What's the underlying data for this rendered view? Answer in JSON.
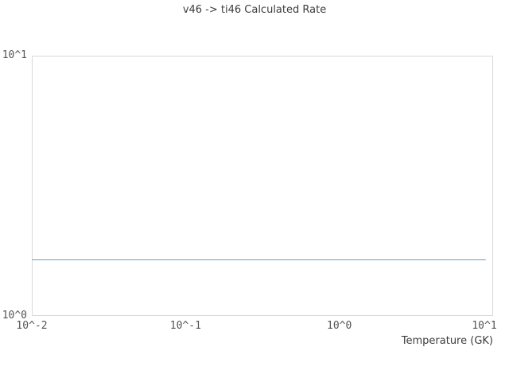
{
  "title": "v46 -> ti46 Calculated Rate",
  "colors": {
    "line": "#5aa2d7",
    "plot_border": "#d9d9d9",
    "title_text": "#3d3d3d",
    "tick_text": "#545454",
    "background": "#ffffff"
  },
  "chart_data": {
    "type": "line",
    "title": "v46 -> ti46 Calculated Rate",
    "xlabel": "Temperature (GK)",
    "ylabel": "",
    "x_scale": "log",
    "y_scale": "log",
    "xlim": [
      0.01,
      10
    ],
    "ylim": [
      1,
      10
    ],
    "grid": false,
    "legend": false,
    "x_ticks": [
      {
        "value": 0.01,
        "label": "10^-2"
      },
      {
        "value": 0.1,
        "label": "10^-1"
      },
      {
        "value": 1,
        "label": "10^0"
      },
      {
        "value": 10,
        "label": "10^1"
      }
    ],
    "y_ticks": [
      {
        "value": 1,
        "label": "10^0"
      },
      {
        "value": 10,
        "label": "10^1"
      }
    ],
    "series": [
      {
        "name": "calculated rate",
        "x": [
          0.01,
          9
        ],
        "y": [
          1.64,
          1.64
        ],
        "color": "#5aa2d7",
        "shape": "constant horizontal line"
      }
    ]
  }
}
